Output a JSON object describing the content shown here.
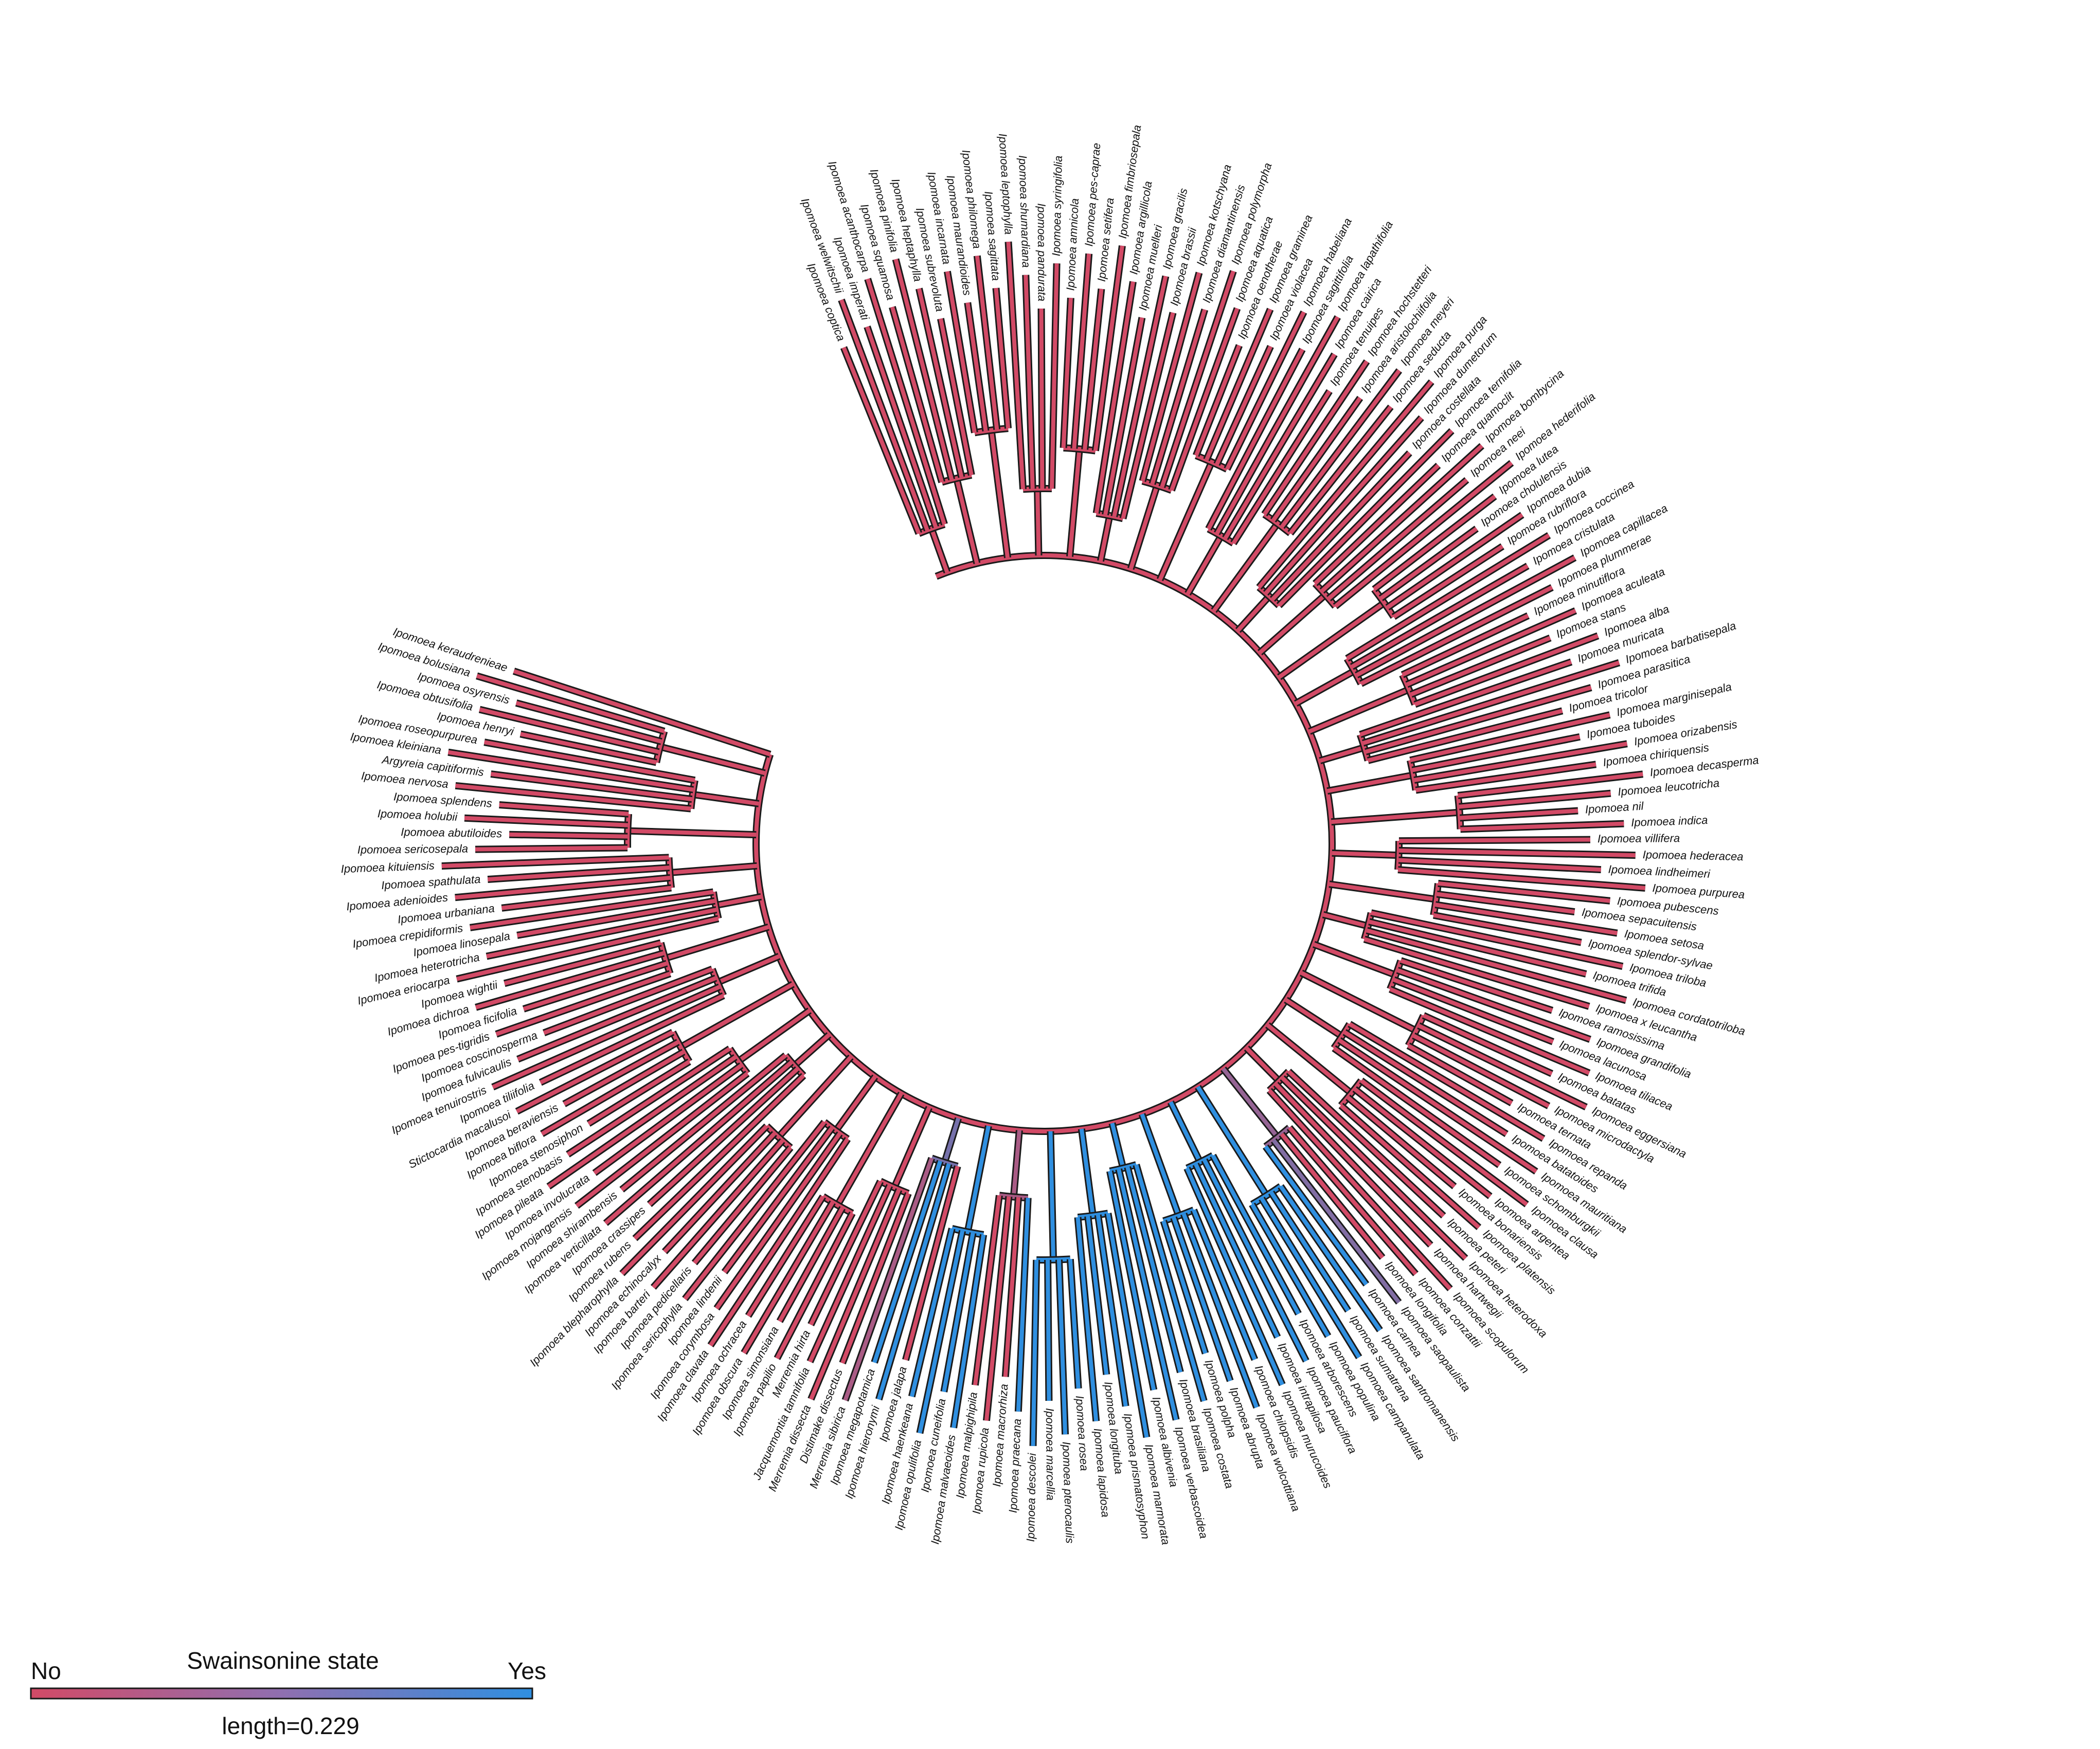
{
  "legend": {
    "title": "Swainsonine state",
    "left_label": "No",
    "right_label": "Yes",
    "length_label": "length=0.229",
    "color_no": "#d24a66",
    "color_yes": "#2f8fe0"
  },
  "tips": [
    {
      "name": "Ipomoea coptica",
      "state": 0
    },
    {
      "name": "Ipomoea welwitschii",
      "state": 0
    },
    {
      "name": "Ipomoea imperati",
      "state": 0
    },
    {
      "name": "Ipomoea acanthocarpa",
      "state": 0
    },
    {
      "name": "Ipomoea squamosa",
      "state": 0
    },
    {
      "name": "Ipomoea pinifolia",
      "state": 0
    },
    {
      "name": "Ipomoea heptaphylla",
      "state": 0
    },
    {
      "name": "Ipomoea subrevoluta",
      "state": 0
    },
    {
      "name": "Ipomoea incarnata",
      "state": 0
    },
    {
      "name": "Ipomoea maurandioides",
      "state": 0
    },
    {
      "name": "Ipomoea philomega",
      "state": 0
    },
    {
      "name": "Ipomoea sagittata",
      "state": 0
    },
    {
      "name": "Ipomoea leptophylla",
      "state": 0
    },
    {
      "name": "Ipomoea shumardiana",
      "state": 0
    },
    {
      "name": "Ipomoea pandurata",
      "state": 0
    },
    {
      "name": "Ipomoea syringifolia",
      "state": 0
    },
    {
      "name": "Ipomoea amnicola",
      "state": 0
    },
    {
      "name": "Ipomoea pes-caprae",
      "state": 0
    },
    {
      "name": "Ipomoea setifera",
      "state": 0
    },
    {
      "name": "Ipomoea fimbriosepala",
      "state": 0
    },
    {
      "name": "Ipomoea argillicola",
      "state": 0
    },
    {
      "name": "Ipomoea muelleri",
      "state": 0
    },
    {
      "name": "Ipomoea gracilis",
      "state": 0
    },
    {
      "name": "Ipomoea brassii",
      "state": 0
    },
    {
      "name": "Ipomoea kotschyana",
      "state": 0
    },
    {
      "name": "Ipomoea diamantinensis",
      "state": 0
    },
    {
      "name": "Ipomoea polymorpha",
      "state": 0
    },
    {
      "name": "Ipomoea aquatica",
      "state": 0
    },
    {
      "name": "Ipomoea oenotherae",
      "state": 0
    },
    {
      "name": "Ipomoea graminea",
      "state": 0
    },
    {
      "name": "Ipomoea violacea",
      "state": 0
    },
    {
      "name": "Ipomoea habeliana",
      "state": 0
    },
    {
      "name": "Ipomoea sagittifolia",
      "state": 0
    },
    {
      "name": "Ipomoea lapathifolia",
      "state": 0
    },
    {
      "name": "Ipomoea cairica",
      "state": 0
    },
    {
      "name": "Ipomoea tenuipes",
      "state": 0
    },
    {
      "name": "Ipomoea hochstetteri",
      "state": 0
    },
    {
      "name": "Ipomoea aristolochiifolia",
      "state": 0
    },
    {
      "name": "Ipomoea meyeri",
      "state": 0
    },
    {
      "name": "Ipomoea seducta",
      "state": 0
    },
    {
      "name": "Ipomoea purga",
      "state": 0
    },
    {
      "name": "Ipomoea dumetorum",
      "state": 0
    },
    {
      "name": "Ipomoea costellata",
      "state": 0
    },
    {
      "name": "Ipomoea ternifolia",
      "state": 0
    },
    {
      "name": "Ipomoea quamoclit",
      "state": 0
    },
    {
      "name": "Ipomoea bombycina",
      "state": 0
    },
    {
      "name": "Ipomoea neei",
      "state": 0
    },
    {
      "name": "Ipomoea hederifolia",
      "state": 0
    },
    {
      "name": "Ipomoea lutea",
      "state": 0
    },
    {
      "name": "Ipomoea cholulensis",
      "state": 0
    },
    {
      "name": "Ipomoea dubia",
      "state": 0
    },
    {
      "name": "Ipomoea rubriflora",
      "state": 0
    },
    {
      "name": "Ipomoea coccinea",
      "state": 0
    },
    {
      "name": "Ipomoea cristulata",
      "state": 0
    },
    {
      "name": "Ipomoea capillacea",
      "state": 0
    },
    {
      "name": "Ipomoea plummerae",
      "state": 0
    },
    {
      "name": "Ipomoea minutiflora",
      "state": 0
    },
    {
      "name": "Ipomoea aculeata",
      "state": 0
    },
    {
      "name": "Ipomoea stans",
      "state": 0
    },
    {
      "name": "Ipomoea alba",
      "state": 0
    },
    {
      "name": "Ipomoea muricata",
      "state": 0
    },
    {
      "name": "Ipomoea barbatisepala",
      "state": 0
    },
    {
      "name": "Ipomoea parasitica",
      "state": 0
    },
    {
      "name": "Ipomoea tricolor",
      "state": 0
    },
    {
      "name": "Ipomoea marginisepala",
      "state": 0
    },
    {
      "name": "Ipomoea tuboides",
      "state": 0
    },
    {
      "name": "Ipomoea orizabensis",
      "state": 0
    },
    {
      "name": "Ipomoea chiriquensis",
      "state": 0
    },
    {
      "name": "Ipomoea decasperma",
      "state": 0
    },
    {
      "name": "Ipomoea leucotricha",
      "state": 0
    },
    {
      "name": "Ipomoea nil",
      "state": 0
    },
    {
      "name": "Ipomoea indica",
      "state": 0
    },
    {
      "name": "Ipomoea villifera",
      "state": 0
    },
    {
      "name": "Ipomoea hederacea",
      "state": 0
    },
    {
      "name": "Ipomoea lindheimeri",
      "state": 0
    },
    {
      "name": "Ipomoea purpurea",
      "state": 0
    },
    {
      "name": "Ipomoea pubescens",
      "state": 0
    },
    {
      "name": "Ipomoea sepacuitensis",
      "state": 0
    },
    {
      "name": "Ipomoea setosa",
      "state": 0
    },
    {
      "name": "Ipomoea splendor-sylvae",
      "state": 0
    },
    {
      "name": "Ipomoea triloba",
      "state": 0
    },
    {
      "name": "Ipomoea trifida",
      "state": 0
    },
    {
      "name": "Ipomoea cordatotriloba",
      "state": 0
    },
    {
      "name": "Ipomoea x leucantha",
      "state": 0
    },
    {
      "name": "Ipomoea ramosissima",
      "state": 0
    },
    {
      "name": "Ipomoea grandifolia",
      "state": 0
    },
    {
      "name": "Ipomoea lacunosa",
      "state": 0
    },
    {
      "name": "Ipomoea tiliacea",
      "state": 0
    },
    {
      "name": "Ipomoea batatas",
      "state": 0
    },
    {
      "name": "Ipomoea eggersiana",
      "state": 0
    },
    {
      "name": "Ipomoea microdactyla",
      "state": 0
    },
    {
      "name": "Ipomoea ternata",
      "state": 0
    },
    {
      "name": "Ipomoea repanda",
      "state": 0
    },
    {
      "name": "Ipomoea batatoides",
      "state": 0
    },
    {
      "name": "Ipomoea mauritiana",
      "state": 0
    },
    {
      "name": "Ipomoea schomburgkii",
      "state": 0
    },
    {
      "name": "Ipomoea clausa",
      "state": 0
    },
    {
      "name": "Ipomoea argentea",
      "state": 0
    },
    {
      "name": "Ipomoea bonariensis",
      "state": 0
    },
    {
      "name": "Ipomoea platensis",
      "state": 0
    },
    {
      "name": "Ipomoea peteri",
      "state": 0
    },
    {
      "name": "Ipomoea heterodoxa",
      "state": 0
    },
    {
      "name": "Ipomoea hartwegii",
      "state": 0
    },
    {
      "name": "Ipomoea scopulorum",
      "state": 0
    },
    {
      "name": "Ipomoea conzattii",
      "state": 0
    },
    {
      "name": "Ipomoea longifolia",
      "state": 0
    },
    {
      "name": "Ipomoea saopaulista",
      "state": 0.5
    },
    {
      "name": "Ipomoea carnea",
      "state": 1
    },
    {
      "name": "Ipomoea santromanensis",
      "state": 1
    },
    {
      "name": "Ipomoea sumatrana",
      "state": 1
    },
    {
      "name": "Ipomoea campanulata",
      "state": 1
    },
    {
      "name": "Ipomoea populina",
      "state": 1
    },
    {
      "name": "Ipomoea arborescens",
      "state": 1
    },
    {
      "name": "Ipomoea pauciflora",
      "state": 1
    },
    {
      "name": "Ipomoea intrapilosa",
      "state": 1
    },
    {
      "name": "Ipomoea murucoides",
      "state": 1
    },
    {
      "name": "Ipomoea chilopsidis",
      "state": 1
    },
    {
      "name": "Ipomoea wolcottiana",
      "state": 1
    },
    {
      "name": "Ipomoea abrupta",
      "state": 1
    },
    {
      "name": "Ipomoea polpha",
      "state": 1
    },
    {
      "name": "Ipomoea costata",
      "state": 1
    },
    {
      "name": "Ipomoea brasiliana",
      "state": 1
    },
    {
      "name": "Ipomoea verbascoidea",
      "state": 1
    },
    {
      "name": "Ipomoea albivenia",
      "state": 1
    },
    {
      "name": "Ipomoea marmorata",
      "state": 1
    },
    {
      "name": "Ipomoea prismatosyphon",
      "state": 1
    },
    {
      "name": "Ipomoea longituba",
      "state": 1
    },
    {
      "name": "Ipomoea lapidosa",
      "state": 1
    },
    {
      "name": "Ipomoea rosea",
      "state": 1
    },
    {
      "name": "Ipomoea pterocaulis",
      "state": 1
    },
    {
      "name": "Ipomoea marcellia",
      "state": 1
    },
    {
      "name": "Ipomoea descolei",
      "state": 1
    },
    {
      "name": "Ipomoea praecana",
      "state": 1
    },
    {
      "name": "Ipomoea macrorhiza",
      "state": 0
    },
    {
      "name": "Ipomoea rupicola",
      "state": 0
    },
    {
      "name": "Ipomoea malpighipila",
      "state": 0
    },
    {
      "name": "Ipomoea malvaeoides",
      "state": 1
    },
    {
      "name": "Ipomoea cuneifolia",
      "state": 1
    },
    {
      "name": "Ipomoea opulifolia",
      "state": 1
    },
    {
      "name": "Ipomoea haenkeana",
      "state": 1
    },
    {
      "name": "Ipomoea jalapa",
      "state": 0
    },
    {
      "name": "Ipomoea hieronymi",
      "state": 1
    },
    {
      "name": "Ipomoea megapotamica",
      "state": 1
    },
    {
      "name": "Merremia sibirica",
      "state": 0.25
    },
    {
      "name": "Distimake dissectus",
      "state": 0
    },
    {
      "name": "Merremia dissecta",
      "state": 0
    },
    {
      "name": "Jacquemontia tamnifolia",
      "state": 0
    },
    {
      "name": "Merremia hirta",
      "state": 0
    },
    {
      "name": "Ipomoea papilio",
      "state": 0
    },
    {
      "name": "Ipomoea simonsiana",
      "state": 0
    },
    {
      "name": "Ipomoea obscura",
      "state": 0
    },
    {
      "name": "Ipomoea ochracea",
      "state": 0
    },
    {
      "name": "Ipomoea clavata",
      "state": 0
    },
    {
      "name": "Ipomoea corymbosa",
      "state": 0
    },
    {
      "name": "Ipomoea lindenii",
      "state": 0
    },
    {
      "name": "Ipomoea sericophylla",
      "state": 0
    },
    {
      "name": "Ipomoea pedicellaris",
      "state": 0
    },
    {
      "name": "Ipomoea barteri",
      "state": 0
    },
    {
      "name": "Ipomoea echinocalyx",
      "state": 0
    },
    {
      "name": "Ipomoea blepharophylla",
      "state": 0
    },
    {
      "name": "Ipomoea rubens",
      "state": 0
    },
    {
      "name": "Ipomoea crassipes",
      "state": 0
    },
    {
      "name": "Ipomoea verticillata",
      "state": 0
    },
    {
      "name": "Ipomoea shirambensis",
      "state": 0
    },
    {
      "name": "Ipomoea mojangensis",
      "state": 0
    },
    {
      "name": "Ipomoea involucrata",
      "state": 0
    },
    {
      "name": "Ipomoea pileata",
      "state": 0
    },
    {
      "name": "Ipomoea stenobasis",
      "state": 0
    },
    {
      "name": "Ipomoea stenosiphon",
      "state": 0
    },
    {
      "name": "Ipomoea biflora",
      "state": 0
    },
    {
      "name": "Ipomoea beraviensis",
      "state": 0
    },
    {
      "name": "Stictocardia macalusoi",
      "state": 0
    },
    {
      "name": "Ipomoea tiliifolia",
      "state": 0
    },
    {
      "name": "Ipomoea tenuirostris",
      "state": 0
    },
    {
      "name": "Ipomoea fulvicaulis",
      "state": 0
    },
    {
      "name": "Ipomoea coscinosperma",
      "state": 0
    },
    {
      "name": "Ipomoea pes-tigridis",
      "state": 0
    },
    {
      "name": "Ipomoea ficifolia",
      "state": 0
    },
    {
      "name": "Ipomoea dichroa",
      "state": 0
    },
    {
      "name": "Ipomoea wightii",
      "state": 0
    },
    {
      "name": "Ipomoea eriocarpa",
      "state": 0
    },
    {
      "name": "Ipomoea heterotricha",
      "state": 0
    },
    {
      "name": "Ipomoea linosepala",
      "state": 0
    },
    {
      "name": "Ipomoea crepidiformis",
      "state": 0
    },
    {
      "name": "Ipomoea urbaniana",
      "state": 0
    },
    {
      "name": "Ipomoea adenioides",
      "state": 0
    },
    {
      "name": "Ipomoea spathulata",
      "state": 0
    },
    {
      "name": "Ipomoea kituiensis",
      "state": 0
    },
    {
      "name": "Ipomoea sericosepala",
      "state": 0
    },
    {
      "name": "Ipomoea abutiloides",
      "state": 0
    },
    {
      "name": "Ipomoea holubii",
      "state": 0
    },
    {
      "name": "Ipomoea splendens",
      "state": 0
    },
    {
      "name": "Ipomoea nervosa",
      "state": 0
    },
    {
      "name": "Argyreia capitiformis",
      "state": 0
    },
    {
      "name": "Ipomoea kleiniana",
      "state": 0
    },
    {
      "name": "Ipomoea roseopurpurea",
      "state": 0
    },
    {
      "name": "Ipomoea henryi",
      "state": 0
    },
    {
      "name": "Ipomoea obtusifolia",
      "state": 0
    },
    {
      "name": "Ipomoea osyrensis",
      "state": 0
    },
    {
      "name": "Ipomoea bolusiana",
      "state": 0
    },
    {
      "name": "Ipomoea keraudrenieae",
      "state": 0
    }
  ]
}
